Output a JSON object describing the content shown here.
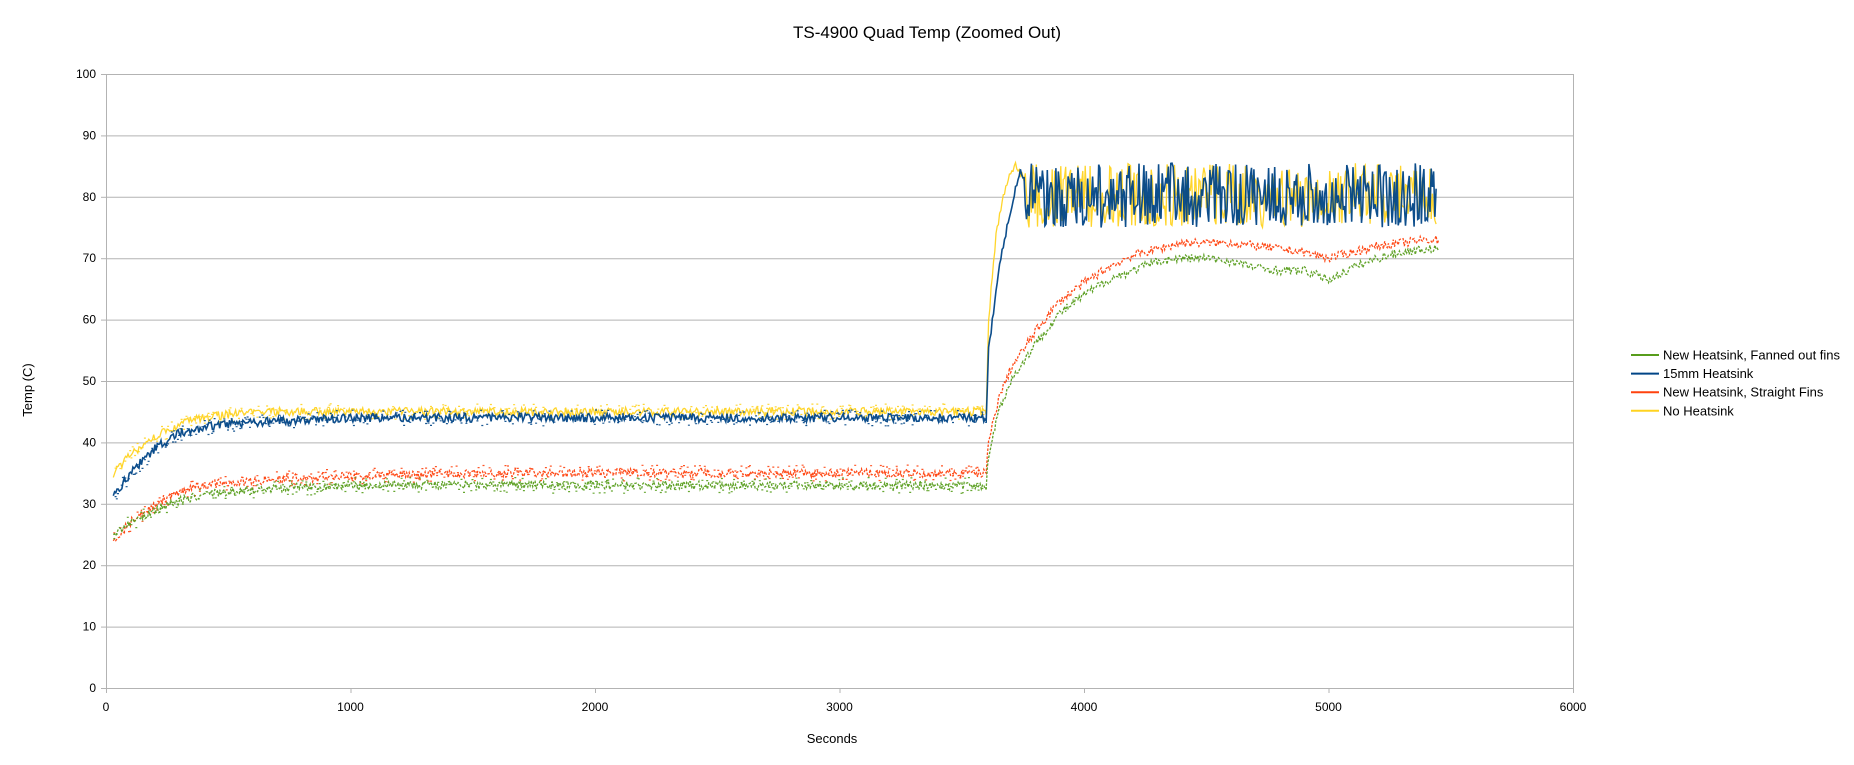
{
  "chart_data": {
    "type": "line",
    "title": "TS-4900 Quad Temp (Zoomed Out)",
    "xlabel": "Seconds",
    "ylabel": "Temp (C)",
    "xlim": [
      0,
      6000
    ],
    "ylim": [
      0,
      100
    ],
    "xticks": [
      0,
      1000,
      2000,
      3000,
      4000,
      5000,
      6000
    ],
    "yticks": [
      0,
      10,
      20,
      30,
      40,
      50,
      60,
      70,
      80,
      90,
      100
    ],
    "grid": "horizontal",
    "legend_position": "right",
    "series": [
      {
        "name": "New Heatsink, Fanned out fins",
        "color": "#579d1c",
        "x": [
          30,
          100,
          200,
          300,
          400,
          500,
          700,
          1000,
          1500,
          2000,
          2500,
          3000,
          3500,
          3600,
          3610,
          3650,
          3700,
          3800,
          3900,
          4000,
          4100,
          4200,
          4300,
          4400,
          4500,
          4600,
          4700,
          4800,
          4900,
          5000,
          5100,
          5200,
          5300,
          5400,
          5450
        ],
        "y": [
          25,
          27,
          29,
          30.5,
          31.5,
          32,
          32.5,
          33,
          33,
          33,
          33,
          33,
          33,
          33,
          38,
          45,
          50,
          56,
          61,
          64,
          66.5,
          68,
          69.5,
          70,
          70,
          69.5,
          68.5,
          68,
          68,
          66.5,
          68.5,
          70,
          71,
          71.5,
          71.5
        ]
      },
      {
        "name": "15mm Heatsink",
        "color": "#004586",
        "x": [
          30,
          100,
          200,
          300,
          400,
          500,
          700,
          1000,
          1500,
          2000,
          2500,
          3000,
          3500,
          3600,
          3610,
          3650,
          3700,
          3740,
          3800,
          4000,
          4500,
          5000,
          5440
        ],
        "y": [
          31,
          35,
          39,
          41.5,
          42.5,
          43,
          43.5,
          44,
          44,
          44,
          44,
          44,
          44,
          44,
          55,
          68,
          78,
          84,
          80,
          80,
          80,
          80,
          80
        ]
      },
      {
        "name": "New Heatsink, Straight Fins",
        "color": "#ff420e",
        "x": [
          30,
          100,
          200,
          300,
          400,
          500,
          700,
          1000,
          1500,
          2000,
          2500,
          3000,
          3500,
          3600,
          3610,
          3650,
          3700,
          3800,
          3900,
          4000,
          4100,
          4200,
          4300,
          4400,
          4500,
          4600,
          4700,
          4800,
          4900,
          5000,
          5100,
          5200,
          5300,
          5400,
          5450
        ],
        "y": [
          24,
          27,
          30,
          32,
          33,
          33.5,
          34,
          34.5,
          35,
          35,
          35,
          35,
          35,
          35,
          40,
          47,
          52,
          58,
          63,
          66,
          68.5,
          70.5,
          71.5,
          72.5,
          72.5,
          72.5,
          72,
          71.5,
          71,
          70,
          71,
          72,
          72.5,
          73,
          73
        ]
      },
      {
        "name": "No Heatsink",
        "color": "#ffd320",
        "x": [
          30,
          100,
          200,
          300,
          400,
          500,
          700,
          1000,
          1500,
          2000,
          2500,
          3000,
          3500,
          3600,
          3610,
          3640,
          3680,
          3720,
          3800,
          4000,
          4500,
          5000,
          5440
        ],
        "y": [
          35,
          38,
          41,
          43,
          44,
          44.5,
          45,
          45,
          45,
          45,
          45,
          45,
          45,
          45,
          60,
          74,
          82,
          85,
          80,
          80,
          80,
          80,
          80
        ]
      }
    ]
  }
}
